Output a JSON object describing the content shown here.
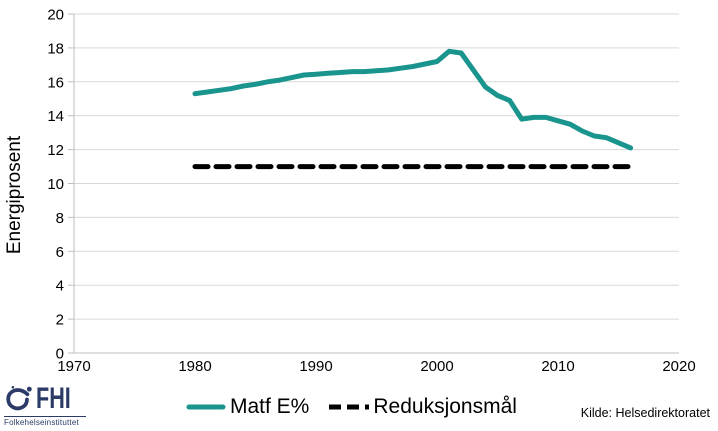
{
  "chart_data": {
    "type": "line",
    "title": "",
    "xlabel": "",
    "ylabel": "Energiprosent",
    "xlim": [
      1970,
      2020
    ],
    "ylim": [
      0,
      20
    ],
    "x_ticks": [
      1970,
      1980,
      1990,
      2000,
      2010,
      2020
    ],
    "y_ticks": [
      0,
      2,
      4,
      6,
      8,
      10,
      12,
      14,
      16,
      18,
      20
    ],
    "grid": "horizontal",
    "legend_position": "bottom",
    "series": [
      {
        "name": "Matf E%",
        "color": "#1A958E",
        "style": "solid",
        "x": [
          1980,
          1981,
          1982,
          1983,
          1984,
          1985,
          1986,
          1987,
          1988,
          1989,
          1990,
          1991,
          1992,
          1993,
          1994,
          1995,
          1996,
          1997,
          1998,
          1999,
          2000,
          2001,
          2002,
          2003,
          2004,
          2005,
          2006,
          2007,
          2008,
          2009,
          2010,
          2011,
          2012,
          2013,
          2014,
          2015,
          2016
        ],
        "values": [
          15.3,
          15.4,
          15.5,
          15.6,
          15.75,
          15.85,
          16.0,
          16.1,
          16.25,
          16.4,
          16.45,
          16.5,
          16.55,
          16.6,
          16.6,
          16.65,
          16.7,
          16.8,
          16.9,
          17.05,
          17.2,
          17.8,
          17.7,
          16.7,
          15.7,
          15.2,
          14.9,
          13.8,
          13.9,
          13.9,
          13.7,
          13.5,
          13.1,
          12.8,
          12.7,
          12.4,
          12.1
        ]
      },
      {
        "name": "Reduksjonsmål",
        "color": "#000000",
        "style": "dashed",
        "x": [
          1980,
          2016
        ],
        "values": [
          11,
          11
        ]
      }
    ]
  },
  "source": {
    "text": "Kilde: Helsedirektoratet"
  },
  "logo": {
    "brand": "FHI",
    "subtext": "Folkehelseinstituttet",
    "color": "#2B3A67"
  },
  "colors": {
    "grid": "#D9D9D9",
    "axis": "#BFBFBF",
    "tick_text": "#000000",
    "background": "#FFFFFF"
  }
}
